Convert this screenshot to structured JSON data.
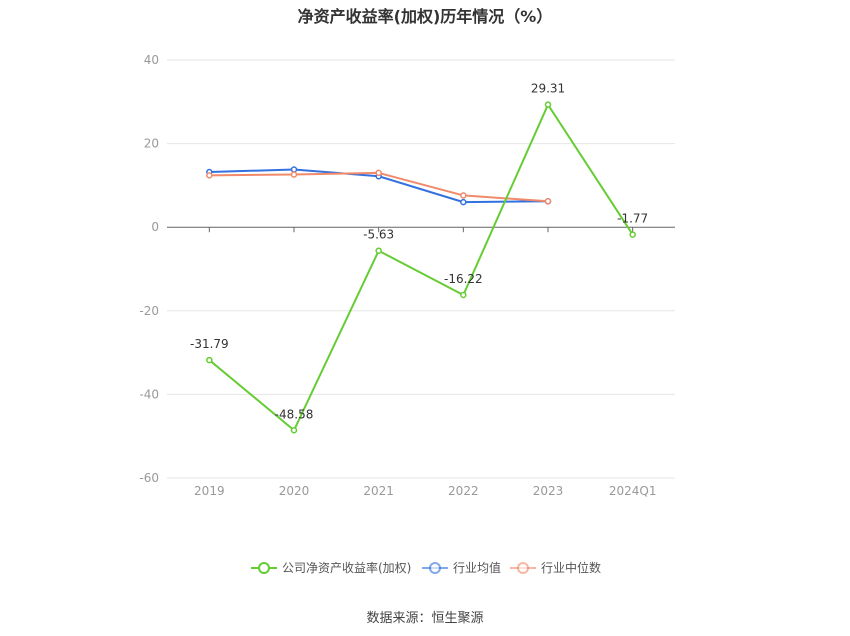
{
  "chart_data": {
    "type": "line",
    "title": "净资产收益率(加权)历年情况（%）",
    "categories": [
      "2019",
      "2020",
      "2021",
      "2022",
      "2023",
      "2024Q1"
    ],
    "ylim": [
      -60,
      40
    ],
    "yticks": [
      40,
      20,
      0,
      -20,
      -40,
      -60
    ],
    "grid": true,
    "legend_position": "bottom",
    "series": [
      {
        "name": "公司净资产收益率(加权)",
        "color": "#66cc33",
        "values": [
          -31.79,
          -48.58,
          -5.63,
          -16.22,
          29.31,
          -1.77
        ],
        "labels": [
          "-31.79",
          "-48.58",
          "-5.63",
          "-16.22",
          "29.31",
          "-1.77"
        ]
      },
      {
        "name": "行业均值",
        "color": "#3370e0",
        "values": [
          13.2,
          13.8,
          12.2,
          6.0,
          6.2,
          null
        ]
      },
      {
        "name": "行业中位数",
        "color": "#f08a6a",
        "values": [
          12.4,
          12.6,
          13.0,
          7.6,
          6.2,
          null
        ]
      }
    ]
  },
  "source": "数据来源：恒生聚源"
}
